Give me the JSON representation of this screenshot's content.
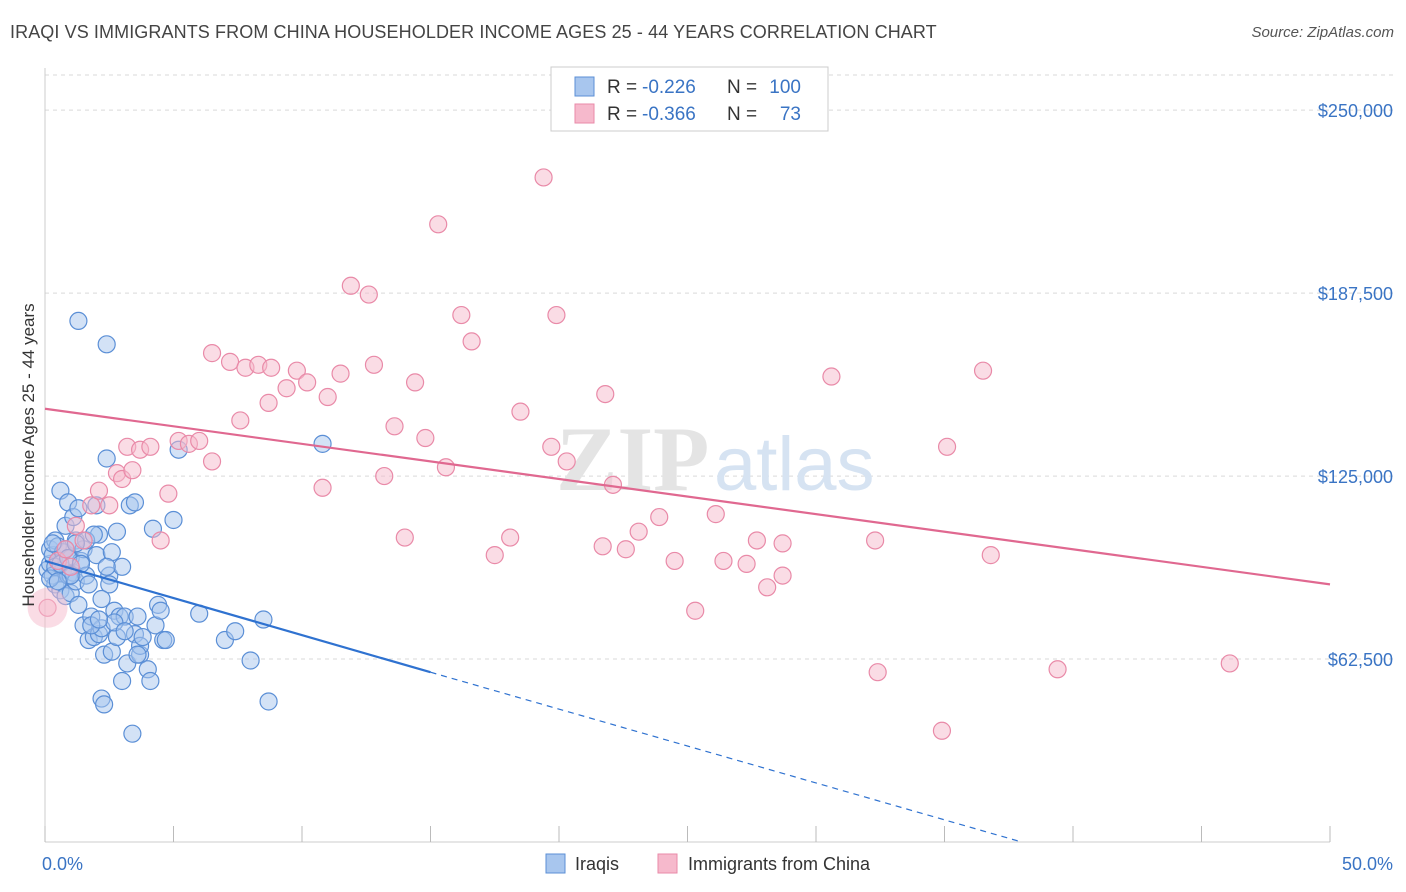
{
  "title": "IRAQI VS IMMIGRANTS FROM CHINA HOUSEHOLDER INCOME AGES 25 - 44 YEARS CORRELATION CHART",
  "source": "Source: ZipAtlas.com",
  "watermark": {
    "part1": "ZIP",
    "part2": "atlas"
  },
  "colors": {
    "iraqi_fill": "#a8c6ee",
    "iraqi_stroke": "#5b8fd6",
    "iraqi_line": "#2f72d0",
    "china_fill": "#f6b9cc",
    "china_stroke": "#e98aa8",
    "china_line": "#e06890",
    "tick_label": "#3a74c4",
    "grid": "#d9d9d9"
  },
  "legend": {
    "r_label": "R =",
    "n_label": "N =",
    "rows": [
      {
        "r": "-0.226",
        "n": "100"
      },
      {
        "r": "-0.366",
        "n": "73"
      }
    ]
  },
  "chart_data": {
    "type": "scatter",
    "title": "IRAQI VS IMMIGRANTS FROM CHINA HOUSEHOLDER INCOME AGES 25 - 44 YEARS CORRELATION CHART",
    "xlabel": "",
    "ylabel": "Householder Income Ages 25 - 44 years",
    "xlim": [
      0,
      50
    ],
    "ylim": [
      0,
      262000
    ],
    "x_tick_labels": [
      "0.0%",
      "50.0%"
    ],
    "y_ticks": [
      62500,
      125000,
      187500,
      250000
    ],
    "y_tick_labels": [
      "$62,500",
      "$125,000",
      "$187,500",
      "$250,000"
    ],
    "grid": "horizontal dashed",
    "legend_position": "top-center",
    "series": [
      {
        "name": "Iraqis",
        "points": [
          [
            0.1,
            93000
          ],
          [
            0.2,
            95000
          ],
          [
            0.2,
            100000
          ],
          [
            0.3,
            98000
          ],
          [
            0.3,
            91000
          ],
          [
            0.4,
            103000
          ],
          [
            0.4,
            88000
          ],
          [
            0.5,
            96000
          ],
          [
            0.5,
            101000
          ],
          [
            0.6,
            120000
          ],
          [
            0.6,
            86000
          ],
          [
            0.7,
            93000
          ],
          [
            0.7,
            99000
          ],
          [
            0.8,
            84000
          ],
          [
            0.8,
            108000
          ],
          [
            0.9,
            116000
          ],
          [
            0.9,
            91000
          ],
          [
            1.0,
            85000
          ],
          [
            1.0,
            97000
          ],
          [
            1.1,
            111000
          ],
          [
            1.1,
            92000
          ],
          [
            1.2,
            103000
          ],
          [
            1.2,
            89000
          ],
          [
            1.3,
            114000
          ],
          [
            1.4,
            96000
          ],
          [
            1.5,
            100000
          ],
          [
            1.5,
            74000
          ],
          [
            1.6,
            91000
          ],
          [
            1.7,
            69000
          ],
          [
            1.7,
            88000
          ],
          [
            1.8,
            77000
          ],
          [
            1.9,
            70000
          ],
          [
            2.0,
            115000
          ],
          [
            2.0,
            98000
          ],
          [
            2.1,
            71000
          ],
          [
            2.1,
            105000
          ],
          [
            2.2,
            49000
          ],
          [
            2.2,
            73000
          ],
          [
            2.3,
            64000
          ],
          [
            2.3,
            47000
          ],
          [
            2.4,
            131000
          ],
          [
            2.5,
            91000
          ],
          [
            2.5,
            88000
          ],
          [
            2.6,
            99000
          ],
          [
            2.6,
            65000
          ],
          [
            2.7,
            79000
          ],
          [
            2.8,
            70000
          ],
          [
            2.8,
            106000
          ],
          [
            2.9,
            77000
          ],
          [
            3.0,
            94000
          ],
          [
            3.0,
            55000
          ],
          [
            3.1,
            77000
          ],
          [
            3.2,
            61000
          ],
          [
            3.3,
            115000
          ],
          [
            3.4,
            37000
          ],
          [
            3.5,
            116000
          ],
          [
            3.5,
            71000
          ],
          [
            3.6,
            77000
          ],
          [
            3.7,
            64000
          ],
          [
            3.7,
            67000
          ],
          [
            3.8,
            70000
          ],
          [
            4.0,
            59000
          ],
          [
            4.1,
            55000
          ],
          [
            4.2,
            107000
          ],
          [
            4.3,
            74000
          ],
          [
            4.4,
            81000
          ],
          [
            4.5,
            79000
          ],
          [
            4.6,
            69000
          ],
          [
            4.7,
            69000
          ],
          [
            5.0,
            110000
          ],
          [
            5.2,
            134000
          ],
          [
            6.0,
            78000
          ],
          [
            7.0,
            69000
          ],
          [
            7.4,
            72000
          ],
          [
            8.0,
            62000
          ],
          [
            8.5,
            76000
          ],
          [
            8.7,
            48000
          ],
          [
            10.8,
            136000
          ],
          [
            1.3,
            178000
          ],
          [
            2.4,
            170000
          ],
          [
            0.2,
            90000
          ],
          [
            0.4,
            94000
          ],
          [
            0.6,
            95000
          ],
          [
            0.8,
            100000
          ],
          [
            1.0,
            91000
          ],
          [
            1.3,
            81000
          ],
          [
            1.6,
            103000
          ],
          [
            1.9,
            105000
          ],
          [
            2.2,
            83000
          ],
          [
            2.7,
            75000
          ],
          [
            3.1,
            72000
          ],
          [
            3.6,
            64000
          ],
          [
            0.3,
            102000
          ],
          [
            0.5,
            89000
          ],
          [
            0.9,
            97000
          ],
          [
            1.2,
            102000
          ],
          [
            1.4,
            95000
          ],
          [
            1.8,
            74000
          ],
          [
            2.1,
            76000
          ],
          [
            2.4,
            94000
          ]
        ]
      },
      {
        "name": "Immigrants from China",
        "points": [
          [
            0.1,
            80000
          ],
          [
            0.5,
            96000
          ],
          [
            0.8,
            100000
          ],
          [
            1.0,
            94000
          ],
          [
            1.2,
            108000
          ],
          [
            1.5,
            103000
          ],
          [
            1.8,
            115000
          ],
          [
            2.1,
            120000
          ],
          [
            2.5,
            115000
          ],
          [
            2.8,
            126000
          ],
          [
            3.0,
            124000
          ],
          [
            3.2,
            135000
          ],
          [
            3.4,
            127000
          ],
          [
            3.7,
            134000
          ],
          [
            4.1,
            135000
          ],
          [
            4.5,
            103000
          ],
          [
            4.8,
            119000
          ],
          [
            5.2,
            137000
          ],
          [
            5.6,
            136000
          ],
          [
            6.0,
            137000
          ],
          [
            6.5,
            130000
          ],
          [
            6.5,
            167000
          ],
          [
            7.2,
            164000
          ],
          [
            7.6,
            144000
          ],
          [
            7.8,
            162000
          ],
          [
            8.3,
            163000
          ],
          [
            8.8,
            162000
          ],
          [
            8.7,
            150000
          ],
          [
            9.4,
            155000
          ],
          [
            9.8,
            161000
          ],
          [
            10.2,
            157000
          ],
          [
            10.8,
            121000
          ],
          [
            11.0,
            152000
          ],
          [
            11.5,
            160000
          ],
          [
            11.9,
            190000
          ],
          [
            12.6,
            187000
          ],
          [
            12.8,
            163000
          ],
          [
            13.2,
            125000
          ],
          [
            13.6,
            142000
          ],
          [
            14.0,
            104000
          ],
          [
            14.4,
            157000
          ],
          [
            14.8,
            138000
          ],
          [
            15.3,
            211000
          ],
          [
            15.6,
            128000
          ],
          [
            16.2,
            180000
          ],
          [
            16.6,
            171000
          ],
          [
            17.5,
            98000
          ],
          [
            18.1,
            104000
          ],
          [
            18.5,
            147000
          ],
          [
            19.4,
            227000
          ],
          [
            19.7,
            135000
          ],
          [
            19.9,
            180000
          ],
          [
            20.3,
            130000
          ],
          [
            21.7,
            101000
          ],
          [
            21.8,
            153000
          ],
          [
            22.1,
            122000
          ],
          [
            22.6,
            100000
          ],
          [
            23.1,
            106000
          ],
          [
            23.9,
            111000
          ],
          [
            24.5,
            96000
          ],
          [
            25.3,
            79000
          ],
          [
            26.1,
            112000
          ],
          [
            26.4,
            96000
          ],
          [
            27.3,
            95000
          ],
          [
            27.7,
            103000
          ],
          [
            28.1,
            87000
          ],
          [
            28.7,
            91000
          ],
          [
            28.7,
            102000
          ],
          [
            30.6,
            159000
          ],
          [
            32.3,
            103000
          ],
          [
            32.4,
            58000
          ],
          [
            34.9,
            38000
          ],
          [
            35.1,
            135000
          ]
        ]
      }
    ],
    "extra_china_points": [
      [
        36.5,
        161000
      ],
      [
        36.8,
        98000
      ],
      [
        39.4,
        59000
      ],
      [
        46.1,
        61000
      ]
    ],
    "trendlines": [
      {
        "series": "Iraqis",
        "from": [
          0,
          96000
        ],
        "to": [
          15,
          58000
        ],
        "dashed_to": [
          38,
          0
        ]
      },
      {
        "series": "Immigrants from China",
        "from": [
          0,
          148000
        ],
        "to": [
          50,
          88000
        ]
      }
    ]
  },
  "bottom_legend": [
    {
      "label": "Iraqis"
    },
    {
      "label": "Immigrants from China"
    }
  ]
}
